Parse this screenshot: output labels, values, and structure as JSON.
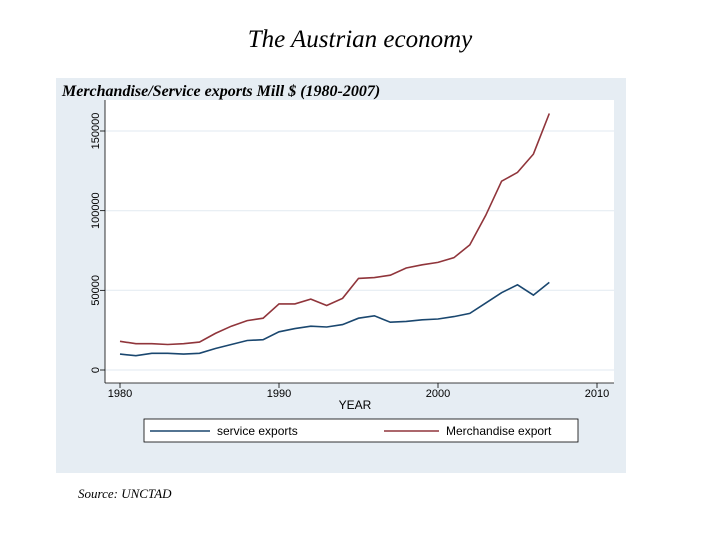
{
  "slide": {
    "title": "The Austrian economy",
    "source": "Source: UNCTAD"
  },
  "chart_data": {
    "type": "line",
    "title": "Merchandise/Service exports Mill $ (1980-2007)",
    "xlabel": "YEAR",
    "ylabel": "",
    "xlim": [
      1980,
      2010
    ],
    "ylim": [
      0,
      160000
    ],
    "xticks": [
      1980,
      1990,
      2000,
      2010
    ],
    "yticks": [
      0,
      50000,
      100000,
      150000
    ],
    "grid": true,
    "legend_position": "bottom",
    "x": [
      1980,
      1981,
      1982,
      1983,
      1984,
      1985,
      1986,
      1987,
      1988,
      1989,
      1990,
      1991,
      1992,
      1993,
      1994,
      1995,
      1996,
      1997,
      1998,
      1999,
      2000,
      2001,
      2002,
      2003,
      2004,
      2005,
      2006,
      2007
    ],
    "series": [
      {
        "name": "service exports",
        "color": "#1a476f",
        "values": [
          10000,
          9000,
          10500,
          10500,
          10000,
          10500,
          13500,
          16000,
          18500,
          19000,
          24000,
          26000,
          27500,
          27000,
          28500,
          32500,
          34000,
          30000,
          30500,
          31500,
          32000,
          33500,
          35500,
          42000,
          48500,
          53500,
          47000,
          55000
        ]
      },
      {
        "name": "Merchandise export",
        "color": "#90353b",
        "values": [
          18000,
          16500,
          16500,
          16000,
          16500,
          17500,
          23000,
          27500,
          31000,
          32500,
          41500,
          41500,
          44500,
          40500,
          45000,
          57500,
          58000,
          59500,
          64000,
          66000,
          67500,
          70500,
          78500,
          97000,
          118500,
          124000,
          135500,
          161000
        ]
      }
    ]
  }
}
